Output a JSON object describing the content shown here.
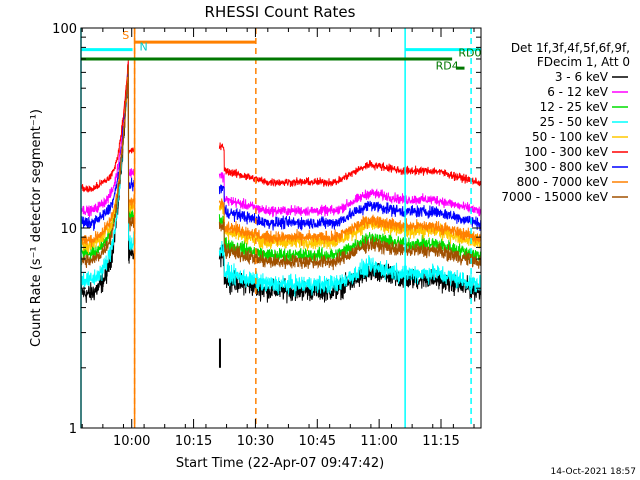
{
  "chart_data": {
    "type": "line",
    "title": "RHESSI Count Rates",
    "xlabel": "Start Time (22-Apr-07 09:47:42)",
    "ylabel": "Count Rate (s⁻¹ detector segment⁻¹)",
    "yscale": "log",
    "xlim_minutes": [
      0,
      97
    ],
    "ylim": [
      1,
      100
    ],
    "x_ticks": [
      {
        "label": "10:00",
        "minute": 12.3
      },
      {
        "label": "10:15",
        "minute": 27.3
      },
      {
        "label": "10:30",
        "minute": 42.3
      },
      {
        "label": "10:45",
        "minute": 57.3
      },
      {
        "label": "11:00",
        "minute": 72.3
      },
      {
        "label": "11:15",
        "minute": 87.3
      }
    ],
    "y_ticks": [
      {
        "label": "1",
        "value": 1
      },
      {
        "label": "10",
        "value": 10
      },
      {
        "label": "100",
        "value": 100
      }
    ],
    "legend_header": [
      "Det 1f,3f,4f,5f,6f,9f,",
      "FDecim 1, Att 0"
    ],
    "series": [
      {
        "name": "3 - 6 keV",
        "color": "#000000",
        "pre": 4.8,
        "post": 5.6,
        "noise": 0.1
      },
      {
        "name": "6 - 12 keV",
        "color": "#ff00ff",
        "pre": 12.5,
        "post": 14.0,
        "noise": 0.05
      },
      {
        "name": "12 - 25 keV",
        "color": "#00dd00",
        "pre": 7.6,
        "post": 8.4,
        "noise": 0.07
      },
      {
        "name": "25 - 50 keV",
        "color": "#00ffff",
        "pre": 5.6,
        "post": 6.0,
        "noise": 0.09
      },
      {
        "name": "50 - 100 keV",
        "color": "#ffc800",
        "pre": 8.4,
        "post": 9.8,
        "noise": 0.07
      },
      {
        "name": "100 - 300 keV",
        "color": "#ff0000",
        "pre": 16.0,
        "post": 19.5,
        "noise": 0.04
      },
      {
        "name": "300 - 800 keV",
        "color": "#0000ff",
        "pre": 10.8,
        "post": 12.2,
        "noise": 0.06
      },
      {
        "name": "800 - 7000 keV",
        "color": "#ff8000",
        "pre": 8.9,
        "post": 10.3,
        "noise": 0.06
      },
      {
        "name": "7000 - 15000 keV",
        "color": "#a05000",
        "pre": 7.0,
        "post": 7.8,
        "noise": 0.07
      }
    ],
    "flare_peak": {
      "minute": 11.5,
      "value": 70
    },
    "data_gap_minutes": [
      13.0,
      33.5
    ],
    "vlines": [
      {
        "minute": 0,
        "color": "#00ffff",
        "style": "solid"
      },
      {
        "minute": 13.0,
        "color": "#ff8000",
        "style": "dashed"
      },
      {
        "minute": 13.0,
        "color": "#ff8000",
        "style": "solid"
      },
      {
        "minute": 42.4,
        "color": "#ff8000",
        "style": "dashed"
      },
      {
        "minute": 78.6,
        "color": "#00ffff",
        "style": "solid"
      },
      {
        "minute": 94.6,
        "color": "#00ffff",
        "style": "dashed"
      }
    ],
    "bars": [
      {
        "label": "",
        "color": "#00ffff",
        "y": 78,
        "x0": 0,
        "x1": 12.5
      },
      {
        "label": "",
        "color": "#00ffff",
        "y": 78,
        "x0": 78.6,
        "x1": 97
      },
      {
        "label": "",
        "color": "#ff8000",
        "y": 85,
        "x0": 13.0,
        "x1": 42.4
      },
      {
        "label": "",
        "color": "#007700",
        "y": 70,
        "x0": 0,
        "x1": 90
      },
      {
        "label": "RD4",
        "color": "#007700",
        "y": 63,
        "x0": 91,
        "x1": 93
      }
    ],
    "annotations": [
      {
        "text": "S",
        "color": "#ff8000",
        "minute": 10.0,
        "value": 88
      },
      {
        "text": "N",
        "color": "#00cccc",
        "minute": 14.2,
        "value": 77
      },
      {
        "text": "RD4",
        "color": "#007700",
        "minute": 86.0,
        "value": 62
      },
      {
        "text": "RD0",
        "color": "#007700",
        "minute": 91.5,
        "value": 72
      }
    ]
  },
  "footer": {
    "timestamp": "14-Oct-2021 18:57"
  }
}
